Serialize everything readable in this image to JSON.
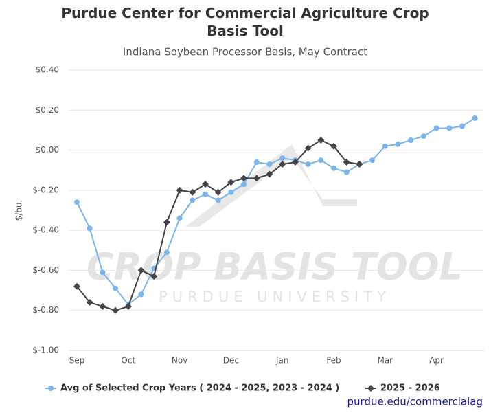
{
  "chart_data": {
    "type": "line",
    "title": "Purdue Center for Commercial Agriculture Crop Basis Tool",
    "subtitle": "Indiana Soybean Processor Basis, May Contract",
    "y_label": "$/bu.",
    "source": "purdue.edu/commercialag",
    "watermark": {
      "title": "CROP BASIS TOOL",
      "subtitle": "PURDUE UNIVERSITY"
    },
    "grid": true,
    "legend": "bottom",
    "categories": [
      "Sep",
      null,
      null,
      null,
      "Oct",
      null,
      null,
      null,
      "Nov",
      null,
      null,
      null,
      "Dec",
      null,
      null,
      null,
      "Jan",
      null,
      null,
      null,
      "Feb",
      null,
      null,
      null,
      "Mar",
      null,
      null,
      null,
      "Apr",
      null,
      null,
      null
    ],
    "ylim": [
      -1.0,
      0.4
    ],
    "yticks": [
      {
        "value": 0.4,
        "label": "$0.40"
      },
      {
        "value": 0.2,
        "label": "$0.20"
      },
      {
        "value": 0,
        "label": "$0.00"
      },
      {
        "value": -0.2,
        "label": "$-0.20"
      },
      {
        "value": -0.4,
        "label": "$-0.40"
      },
      {
        "value": -0.6,
        "label": "$-0.60"
      },
      {
        "value": -0.8,
        "label": "$-0.80"
      },
      {
        "value": -1.0,
        "label": "$-1.00"
      }
    ],
    "series": [
      {
        "name": "Avg of Selected Crop Years ( 2024 - 2025, 2023 - 2024 )",
        "color": "#7cb5ec",
        "marker": "circle",
        "values": [
          -0.26,
          -0.39,
          -0.61,
          -0.69,
          -0.77,
          -0.72,
          -0.59,
          -0.51,
          -0.34,
          -0.25,
          -0.22,
          -0.25,
          -0.21,
          -0.17,
          -0.06,
          -0.07,
          -0.04,
          -0.05,
          -0.07,
          -0.05,
          -0.09,
          -0.11,
          -0.07,
          -0.05,
          0.02,
          0.03,
          0.05,
          0.07,
          0.11,
          0.11,
          0.12,
          0.16
        ]
      },
      {
        "name": "2025 - 2026",
        "color": "#434348",
        "marker": "diamond",
        "values": [
          -0.68,
          -0.76,
          -0.78,
          -0.8,
          -0.78,
          -0.6,
          -0.63,
          -0.36,
          -0.2,
          -0.21,
          -0.17,
          -0.21,
          -0.16,
          -0.14,
          -0.14,
          -0.12,
          -0.07,
          -0.06,
          0.01,
          0.05,
          0.02,
          -0.06,
          -0.07,
          null,
          null,
          null,
          null,
          null,
          null,
          null,
          null,
          null
        ]
      }
    ]
  }
}
